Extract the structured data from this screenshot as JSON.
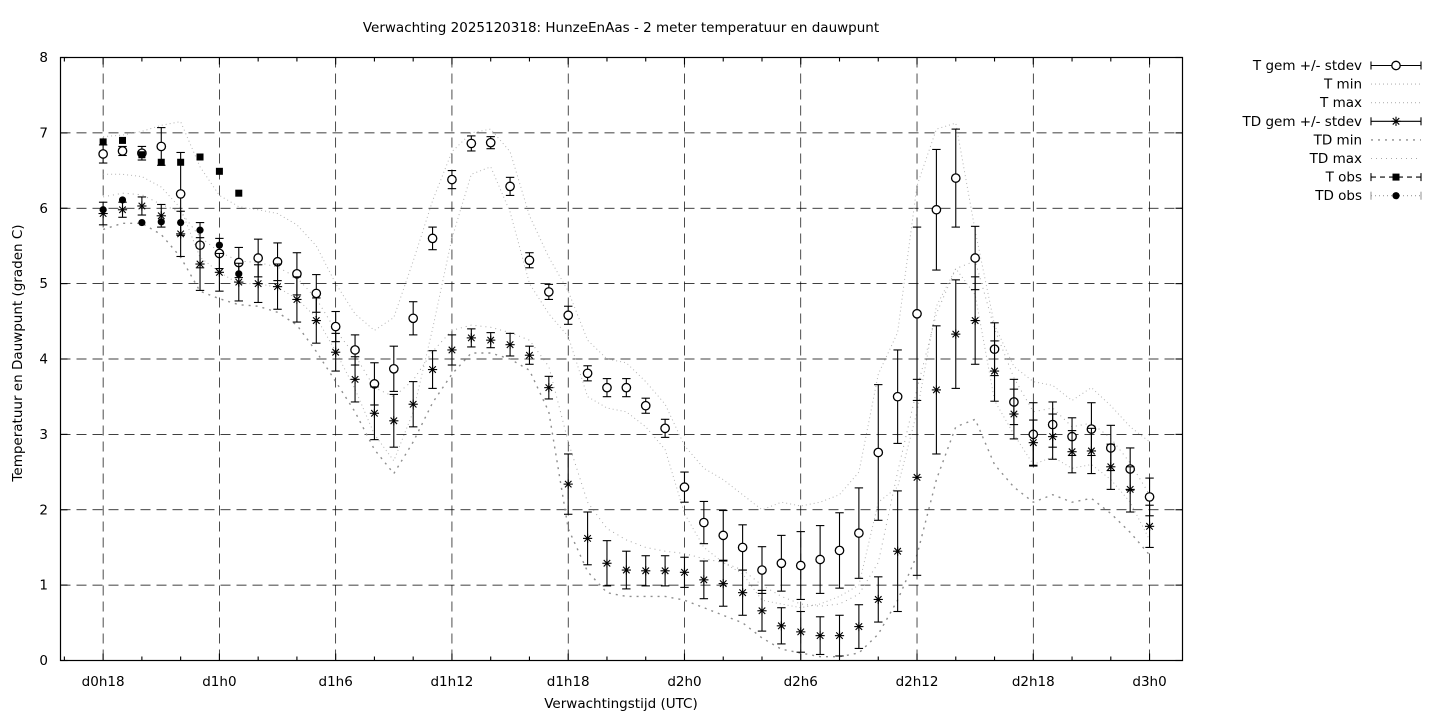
{
  "title": "Verwachting 2025120318: HunzeEnAas - 2 meter temperatuur en dauwpunt",
  "axes": {
    "x_label": "Verwachtingstijd (UTC)",
    "y_label": "Temperatuur en Dauwpunt (graden C)",
    "y_range": [
      0,
      8
    ],
    "y_ticks": [
      0,
      1,
      2,
      3,
      4,
      5,
      6,
      7,
      8
    ],
    "x_range_hours": [
      -2.2,
      55.7
    ],
    "x_minor_step_hours": 2,
    "x_ticks": [
      {
        "hour": 0,
        "label": "d0h18"
      },
      {
        "hour": 6,
        "label": "d1h0"
      },
      {
        "hour": 12,
        "label": "d1h6"
      },
      {
        "hour": 18,
        "label": "d1h12"
      },
      {
        "hour": 24,
        "label": "d1h18"
      },
      {
        "hour": 30,
        "label": "d2h0"
      },
      {
        "hour": 36,
        "label": "d2h6"
      },
      {
        "hour": 42,
        "label": "d2h12"
      },
      {
        "hour": 48,
        "label": "d2h18"
      },
      {
        "hour": 54,
        "label": "d3h0"
      }
    ],
    "grid": true
  },
  "colors": {
    "foreground": "#000000",
    "background": "#ffffff",
    "t_envelope_dots": "#b4b4b4",
    "td_min_dots": "#8e8e8e",
    "td_max_dots": "#a8a8a8",
    "td_obs_line": "#9a9a9a"
  },
  "legend": {
    "position": "outside-right-top",
    "items": [
      {
        "label": "T gem +/- stdev",
        "glyph": "errbar",
        "marker": "circle-open",
        "line_color": "#000000",
        "dash": ""
      },
      {
        "label": "T min",
        "glyph": "line",
        "marker": "",
        "line_color": "#b4b4b4",
        "dash": "1,3"
      },
      {
        "label": "T max",
        "glyph": "line",
        "marker": "",
        "line_color": "#b4b4b4",
        "dash": "1,3"
      },
      {
        "label": "TD gem +/- stdev",
        "glyph": "errbar",
        "marker": "asterisk",
        "line_color": "#000000",
        "dash": ""
      },
      {
        "label": "TD min",
        "glyph": "line",
        "marker": "",
        "line_color": "#8e8e8e",
        "dash": "2,5"
      },
      {
        "label": "TD max",
        "glyph": "line",
        "marker": "",
        "line_color": "#a8a8a8",
        "dash": "1,4"
      },
      {
        "label": "T obs",
        "glyph": "errbar",
        "marker": "square-filled",
        "line_color": "#000000",
        "dash": "5,4"
      },
      {
        "label": "TD obs",
        "glyph": "errbar",
        "marker": "circle-filled",
        "line_color": "#9a9a9a",
        "dash": "1,3"
      }
    ]
  },
  "chart_data": {
    "type": "line",
    "x_unit": "hours since d0h18 (hourly points)",
    "x_start_hour": 0,
    "x_step_hours": 1,
    "series": [
      {
        "key": "t_min",
        "name": "T min",
        "style": "dots",
        "color": "#b4b4b4",
        "dash": "1,3",
        "width": 1,
        "values": [
          6.45,
          6.45,
          6.42,
          6.28,
          6.0,
          5.35,
          5.15,
          5.0,
          5.0,
          4.95,
          4.8,
          4.55,
          4.1,
          3.6,
          3.0,
          2.65,
          3.3,
          4.4,
          5.6,
          6.45,
          6.55,
          5.95,
          5.0,
          4.6,
          4.3,
          3.5,
          3.35,
          3.3,
          3.1,
          2.8,
          1.95,
          1.5,
          1.3,
          1.15,
          0.8,
          0.75,
          0.7,
          0.75,
          0.85,
          1.0,
          2.1,
          2.3,
          3.3,
          4.7,
          5.2,
          4.85,
          3.45,
          3.0,
          2.6,
          2.7,
          2.55,
          2.6,
          2.4,
          2.1,
          1.6
        ]
      },
      {
        "key": "t_max",
        "name": "T max",
        "style": "dots",
        "color": "#b4b4b4",
        "dash": "1,3",
        "width": 1,
        "values": [
          6.95,
          6.97,
          7.02,
          7.1,
          7.15,
          6.55,
          6.17,
          6.02,
          5.98,
          5.93,
          5.78,
          5.5,
          5.0,
          4.6,
          4.38,
          4.55,
          5.3,
          6.1,
          6.75,
          7.0,
          7.05,
          6.75,
          5.9,
          5.35,
          4.9,
          4.25,
          4.0,
          3.95,
          3.7,
          3.4,
          2.85,
          2.55,
          2.4,
          2.2,
          2.0,
          2.1,
          2.05,
          2.1,
          2.2,
          2.5,
          3.8,
          4.35,
          6.3,
          7.05,
          7.13,
          5.7,
          4.45,
          3.9,
          3.7,
          3.65,
          3.45,
          3.62,
          3.38,
          3.1,
          2.9
        ]
      },
      {
        "key": "td_min",
        "name": "TD min",
        "style": "dots",
        "color": "#8e8e8e",
        "dash": "2,5",
        "width": 1.4,
        "values": [
          5.72,
          5.8,
          5.8,
          5.65,
          5.35,
          4.9,
          4.8,
          4.72,
          4.7,
          4.62,
          4.45,
          4.1,
          3.7,
          3.3,
          2.8,
          2.48,
          2.9,
          3.42,
          3.8,
          4.08,
          4.08,
          4.0,
          3.85,
          3.3,
          1.75,
          1.18,
          0.9,
          0.85,
          0.85,
          0.85,
          0.8,
          0.7,
          0.6,
          0.5,
          0.3,
          0.15,
          0.1,
          0.05,
          0.05,
          0.1,
          0.35,
          0.8,
          1.4,
          2.4,
          3.1,
          3.2,
          2.6,
          2.3,
          2.1,
          2.2,
          2.1,
          2.15,
          1.95,
          1.7,
          1.4
        ]
      },
      {
        "key": "td_max",
        "name": "TD max",
        "style": "dots",
        "color": "#a8a8a8",
        "dash": "1,4",
        "width": 1,
        "values": [
          6.15,
          6.2,
          6.18,
          6.05,
          5.95,
          5.62,
          5.42,
          5.3,
          5.28,
          5.22,
          5.08,
          4.8,
          4.38,
          4.05,
          3.62,
          3.5,
          3.72,
          4.1,
          4.38,
          4.45,
          4.42,
          4.35,
          4.25,
          3.9,
          2.9,
          2.1,
          1.75,
          1.6,
          1.5,
          1.45,
          1.42,
          1.35,
          1.3,
          1.2,
          1.0,
          0.85,
          0.75,
          0.72,
          0.75,
          0.88,
          1.3,
          2.5,
          3.6,
          4.6,
          5.2,
          5.3,
          4.4,
          3.75,
          3.3,
          3.35,
          3.1,
          3.15,
          2.95,
          2.62,
          2.2
        ]
      },
      {
        "key": "t_gem",
        "name": "T gem +/- stdev",
        "style": "errorbar",
        "marker": "circle-open",
        "color": "#000000",
        "values": [
          6.72,
          6.76,
          6.73,
          6.82,
          6.19,
          5.51,
          5.4,
          5.28,
          5.34,
          5.29,
          5.13,
          4.87,
          4.43,
          4.12,
          3.67,
          3.87,
          4.54,
          5.6,
          6.38,
          6.86,
          6.87,
          6.29,
          5.31,
          4.89,
          4.58,
          3.81,
          3.62,
          3.62,
          3.38,
          3.08,
          2.3,
          1.83,
          1.66,
          1.5,
          1.2,
          1.29,
          1.26,
          1.34,
          1.46,
          1.69,
          2.76,
          3.5,
          4.6,
          5.98,
          6.4,
          5.34,
          4.13,
          3.43,
          3.0,
          3.13,
          2.97,
          3.07,
          2.82,
          2.54,
          2.17
        ],
        "stdev": [
          0.12,
          0.06,
          0.09,
          0.25,
          0.55,
          0.3,
          0.2,
          0.2,
          0.25,
          0.25,
          0.28,
          0.25,
          0.2,
          0.2,
          0.28,
          0.3,
          0.22,
          0.15,
          0.12,
          0.1,
          0.08,
          0.12,
          0.1,
          0.1,
          0.12,
          0.1,
          0.12,
          0.12,
          0.1,
          0.12,
          0.2,
          0.28,
          0.33,
          0.3,
          0.31,
          0.37,
          0.45,
          0.45,
          0.5,
          0.6,
          0.9,
          0.62,
          1.15,
          0.8,
          0.65,
          0.42,
          0.35,
          0.3,
          0.42,
          0.3,
          0.25,
          0.35,
          0.3,
          0.28,
          0.25
        ]
      },
      {
        "key": "td_gem",
        "name": "TD gem +/- stdev",
        "style": "errorbar",
        "marker": "asterisk",
        "color": "#000000",
        "values": [
          5.93,
          5.98,
          6.03,
          5.9,
          5.66,
          5.26,
          5.15,
          5.02,
          5.0,
          4.96,
          4.79,
          4.51,
          4.09,
          3.73,
          3.28,
          3.18,
          3.4,
          3.86,
          4.12,
          4.28,
          4.25,
          4.19,
          4.05,
          3.62,
          2.34,
          1.62,
          1.29,
          1.2,
          1.19,
          1.19,
          1.17,
          1.07,
          1.02,
          0.9,
          0.66,
          0.46,
          0.38,
          0.33,
          0.33,
          0.45,
          0.81,
          1.45,
          2.43,
          3.59,
          4.33,
          4.51,
          3.84,
          3.27,
          2.89,
          2.97,
          2.77,
          2.78,
          2.57,
          2.27,
          1.78
        ],
        "stdev": [
          0.15,
          0.1,
          0.12,
          0.15,
          0.3,
          0.35,
          0.25,
          0.25,
          0.25,
          0.3,
          0.3,
          0.3,
          0.25,
          0.3,
          0.35,
          0.35,
          0.3,
          0.25,
          0.2,
          0.12,
          0.1,
          0.15,
          0.12,
          0.15,
          0.4,
          0.35,
          0.3,
          0.25,
          0.2,
          0.2,
          0.2,
          0.25,
          0.3,
          0.3,
          0.27,
          0.24,
          0.27,
          0.25,
          0.27,
          0.29,
          0.3,
          0.8,
          1.3,
          0.85,
          0.72,
          0.58,
          0.4,
          0.33,
          0.3,
          0.3,
          0.28,
          0.3,
          0.3,
          0.3,
          0.28
        ]
      },
      {
        "key": "t_obs",
        "name": "T obs",
        "style": "points",
        "marker": "square-filled",
        "color": "#000000",
        "values": [
          6.88,
          6.9,
          6.71,
          6.61,
          6.61,
          6.68,
          6.49,
          6.2
        ]
      },
      {
        "key": "td_obs",
        "name": "TD obs",
        "style": "points",
        "marker": "circle-filled",
        "color": "#000000",
        "values": [
          5.98,
          6.11,
          5.81,
          5.82,
          5.81,
          5.71,
          5.51,
          5.13
        ]
      }
    ]
  }
}
